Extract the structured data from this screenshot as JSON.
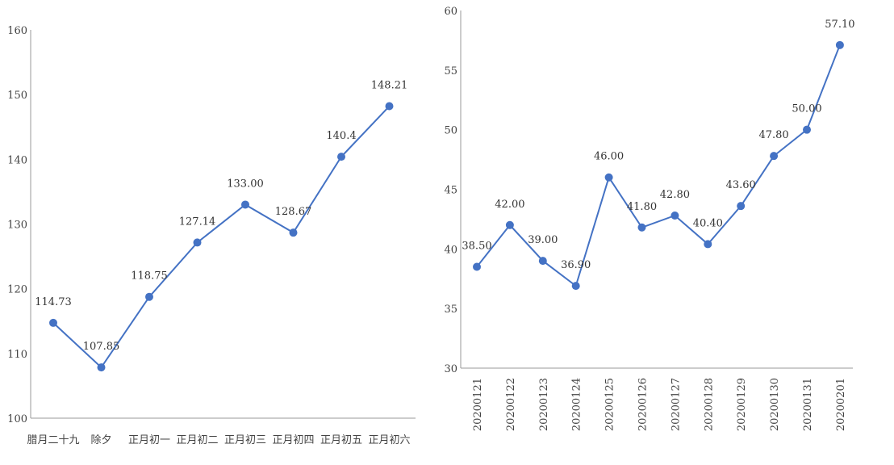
{
  "chart_data": [
    {
      "type": "line",
      "categories": [
        "腊月二十九",
        "除夕",
        "正月初一",
        "正月初二",
        "正月初三",
        "正月初四",
        "正月初五",
        "正月初六"
      ],
      "series": [
        {
          "values": [
            114.73,
            107.85,
            118.75,
            127.14,
            133.0,
            128.67,
            140.4,
            148.21
          ]
        }
      ],
      "data_labels": [
        "114.73",
        "107.85",
        "118.75",
        "127.14",
        "133.00",
        "128.67",
        "140.4",
        "148.21"
      ],
      "ylim": [
        100,
        160
      ],
      "yticks": [
        "100",
        "110",
        "120",
        "130",
        "140",
        "150",
        "160"
      ],
      "color": "#4472C4",
      "grid": false
    },
    {
      "type": "line",
      "categories": [
        "20200121",
        "20200122",
        "20200123",
        "20200124",
        "20200125",
        "20200126",
        "20200127",
        "20200128",
        "20200129",
        "20200130",
        "20200131",
        "20200201"
      ],
      "series": [
        {
          "values": [
            38.5,
            42.0,
            39.0,
            36.9,
            46.0,
            41.8,
            42.8,
            40.4,
            43.6,
            47.8,
            50.0,
            57.1
          ]
        }
      ],
      "data_labels": [
        "38.50",
        "42.00",
        "39.00",
        "36.90",
        "46.00",
        "41.80",
        "42.80",
        "40.40",
        "43.60",
        "47.80",
        "50.00",
        "57.10"
      ],
      "ylim": [
        30,
        60
      ],
      "yticks": [
        "30",
        "35",
        "40",
        "45",
        "50",
        "55",
        "60"
      ],
      "color": "#4472C4",
      "grid": false
    }
  ]
}
